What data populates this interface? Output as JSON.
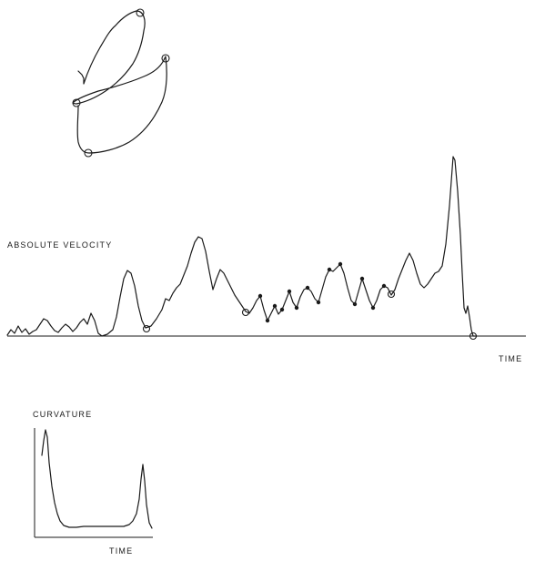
{
  "velocity_panel": {
    "label": "ABSOLUTE VELOCITY",
    "time_label": "TIME"
  },
  "curvature_panel": {
    "label": "CURVATURE",
    "time_label": "TIME"
  },
  "colors": {
    "ink": "#1a1a1a",
    "background": "#ffffff"
  }
}
